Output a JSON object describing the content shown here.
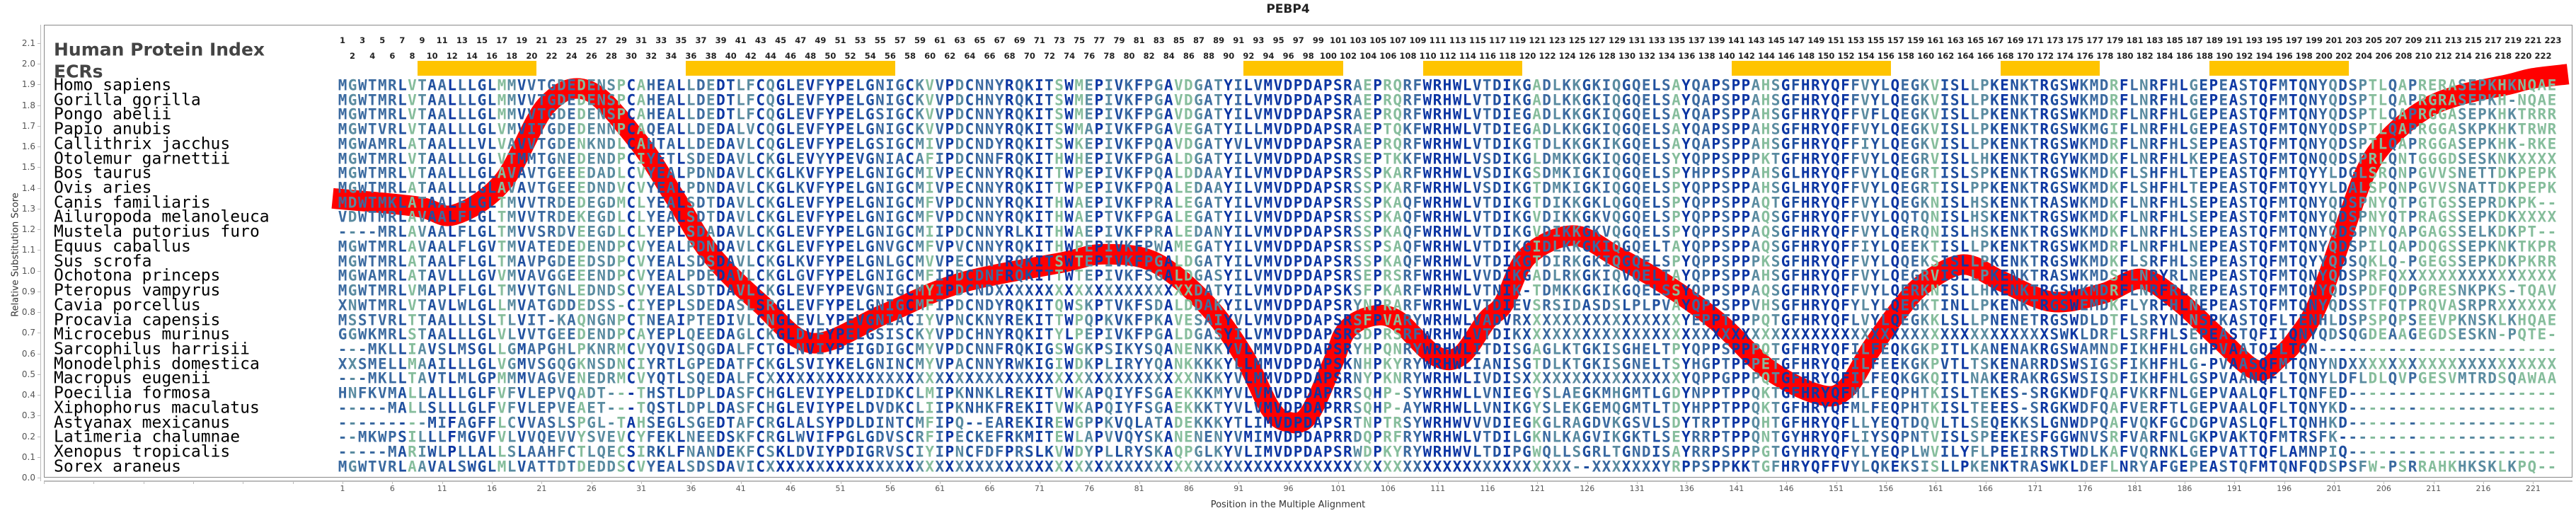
{
  "chart_data": {
    "type": "line",
    "title": "PEBP4",
    "xlabel": "Position in the Multiple Alignment",
    "ylabel": "Relative Substitution Score",
    "ylim": [
      0.0,
      2.1
    ],
    "y_tick_step": 0.1,
    "x_tick_start": 1,
    "x_tick_step": 5,
    "positions": 223,
    "grid": false,
    "curve_color": "#ff0000",
    "series": [
      {
        "name": "Relative Substitution Score",
        "x": [
          0,
          8.5,
          12.2,
          17.1,
          21.5,
          25.7,
          30.6,
          34.3,
          38,
          43,
          48.2,
          55.4,
          63,
          73.3,
          77.5,
          82.6,
          87.7,
          91.5,
          94.1,
          95.9,
          98,
          100.5,
          101.8,
          104.3,
          106.9,
          110.7,
          113.3,
          115.9,
          117.6,
          120,
          124.6,
          128.9,
          134,
          139.2,
          144.3,
          149.4,
          152,
          154.5,
          157.5,
          159.9,
          163.8,
          167.6,
          172.7,
          177.8,
          181.7,
          185.5,
          189.3,
          193.2,
          195.7,
          197.4,
          199.3,
          201.7,
          204.1,
          206.5,
          210.1,
          213.7,
          218.5,
          221,
          224.5
        ],
        "y": [
          1.35,
          1.31,
          1.27,
          1.43,
          1.8,
          1.87,
          1.63,
          1.36,
          1.08,
          0.84,
          0.65,
          0.79,
          0.94,
          1.04,
          1.08,
          1.04,
          0.84,
          0.59,
          0.34,
          0.27,
          0.3,
          0.56,
          0.71,
          0.78,
          0.76,
          0.59,
          0.59,
          0.76,
          0.84,
          1.07,
          1.17,
          1.07,
          0.93,
          0.75,
          0.52,
          0.4,
          0.43,
          0.62,
          0.82,
          0.94,
          1.03,
          0.95,
          0.85,
          0.89,
          0.96,
          0.85,
          0.68,
          0.52,
          0.59,
          0.68,
          0.83,
          1.15,
          1.47,
          1.64,
          1.78,
          1.85,
          1.9,
          1.93,
          1.95
        ]
      }
    ]
  },
  "header": {
    "index_label": "Human Protein Index",
    "ecr_label": "ECRs",
    "ecr_color": "#ffc400",
    "ecr_ranges": [
      [
        9,
        20
      ],
      [
        36,
        56
      ],
      [
        92,
        101
      ],
      [
        110,
        119
      ],
      [
        141,
        156
      ],
      [
        168,
        177
      ],
      [
        189,
        202
      ]
    ]
  },
  "alignment": {
    "colors": {
      "high": "#0b35a3",
      "mid_high": "#1f4f9f",
      "mid": "#3b6aa0",
      "mid_low": "#5a8ba0",
      "low": "#86bd9c"
    },
    "rows": [
      {
        "species": "Homo sapiens",
        "sequence": "MGWTMRLVTAALLLGLMMVVTGDEDENSPCAHEALLDEDTLFCQGLEVFYPELGNIGCKVVPDCNNYRQKITSWMEPIVKFPGAVDGATYILVMVDPDAPSRAEPRQRFWRHWLVTDIKGADLKKGKIQGQELSAYQAPSPPAHSGFHRYQFFVYLQEGKVISLLPKENKTRGSWKMDRFLNRFHLGEPEASTQFMTQNYQDSPTLQAPRERASEPKHKNQAE"
      },
      {
        "species": "Gorilla gorilla",
        "sequence": "MGWTMRLVTAALLLGLMMVVTGDEDENSPCAHEALLDEDTLFCQGLEVFYPELGNIGCKVVPDCHNYRQKITSWMEPIVKFPGAVDGATYILVMVDPDAPSRAEPRQRFWRHWLVTDIKGADLKKGKIQGQELSAYQAPSPPAHSGFHRYQFFVYLQEGKVISLLPKENKTRGSWKMDRFLNRFHLGEPEASTQFMTQNYQDSPTLQAPRGRASEPKH-NQAE"
      },
      {
        "species": "Pongo abelii",
        "sequence": "MGWTMRLVTAALLLGLMMVVTGDEDENSPCAHEALLDEDTLFCQGLEVFYPELGSIGCKVVPDCNNYRQKITSWMEPIVKFPGAVDGATYILVMVDPDAPSRAEPRQRFWRHWLVTDIEGADLKKGKIQGQELSAYQAPSPPAHSGFHRYQFFVFLQEGKVISLLPKENKTRGSWKMDRFLNRFHLGEPEASTQFMTQNYQDSPTLQAPRGGASEPKHKTRRR"
      },
      {
        "species": "Papio anubis",
        "sequence": "MGWTVRLVTAALLLGLVMVITGDEDENNPCAQEALLDEDALVCQGLEVFYPELGNIGCKVVPDCNNYRQKITSWMAPIVKFPGAVEGATYILLMVDPDAPSRAEPTQKFWRHWLVTDIEGADLKKGKIQGQELSAYQAPSPPAHSGFHRYQFFVYLQEGKVISLLPKENKTRGSWKMGIFLNRFHLGEPEASTQFMTQNYQDSPTLQAPRGGASKPKHKTRWR"
      },
      {
        "species": "Callithrix jacchus",
        "sequence": "MGWAMRLATAALLLVLVAVVTGDENKNDLCAHTALLDEDAVLCQGLEVFYPELGSIGCMIVPDCNDYRQKITSWKEPIVKFPQAVDGATYVLVMVDPDAPSRAEPRQRFWRHWLVTDIKGTDLKKGKIKGQELSAYQAPSPPAHSGFHRYQFFIYLQEGKVISLLPKENKTRGSWKMDRFLNRFHLSEPEASTQFMTQNYQDSPTLQAPRGGASEPKHK-RKE"
      },
      {
        "species": "Otolemur garnettii",
        "sequence": "MGWTMRLVTAALLLGLVTMMTGNEDENDPCIYETLSDEDAVLCKGLEVYYPEVGNIACAFIPDCNNFRQKITHWHEPIVKFPGALDGATYILVMVDPDAPSRSEPTKKFWRHWLVSDIKGLDMKKGKIQGQELSYYQPPSPPPKTGFHRYQFFVYLQEGRVISLLHKENKTRGYWKMDKFLNRFHLKEPEASTQFMTQNQQDSPRLQNTGGGDSESKNKXXXX"
      },
      {
        "species": "Bos taurus",
        "sequence": "MGWTMRLVTAALLLGLAVAVTGEEEDADLCVYEALPDNDAVLCKGLKVFYPELGNIGCMIVPECNNYRQKITTWPEPIVKFPQALDDAAYILVMVDPDAPSRSSPKARFWRHWLVSDIKGSDMKIGKIQGQELSPYHPPSPPAHSGLHRYQFFVYLQEGRTISLSPKENKTRGSWKMDKFLSHFHLTEPEASTQFMTQYYLDGLSRQNPGVVSNETTDKPEPK"
      },
      {
        "species": "Ovis aries",
        "sequence": "MGWTMRLATAALLLGLAVAVTGEEEDNDVCVYEALPDNDAVLCKGLKVFYPELGNIGCMIVPECNNYRQKITTWPEPIVKFPQALEDAAYILVMVDPDAPSRSSPKARFWRHWLVSDIKGTDMKIGKIQGQELSPYQPPSPPAHSGLHRYQFFVYLQEGRTISLPPKENKTRGSWKMDKFLSHFHLTEPEASTQFMTQYYLDALSPQNPGVVSNATTDKPEPK"
      },
      {
        "species": "Canis familiaris",
        "sequence": "MDWTMKLATAALFLGLTMVVTRDEDEGDMCLYEALSDTDAVLCKGLEVFYPELGNIGCMFVPDCNNYRQKITHWAEPIVKFPRALEGATYILVMVDPDAPSRSSPKAQFWRHWLVTDIKGTDIKKGKLQGQELSPYQPPSPPAQTGFHRYQFFVYLQEGKNISLHSKENKTRASWKMDKFLNRFHLSEPEASTQFMTQNYQDSPNYQTPGTGSSEPRDKPK--"
      },
      {
        "species": "Ailuropoda melanoleuca",
        "sequence": "VDWTMRLAVAALFLGLTMVVTRDEKEGDLCLYEALSDTDAVLCKGLEVFYPELGNIGCMFVPDCNNYRQKITHWAEPTVKFPGALEGATYILVMVDPDAPSRSSPKAQFWRHWLVTDIKGVDIKKGKVQGQELSPYQPPSPPAQSGFHRYQFFVYLQQTQNISLHSKENKTRGSWKMDKFLNRFHLSEPEASTQFMTQNYQDSPNYQTPRAGSSEPKDKXXXX"
      },
      {
        "species": "Mustela putorius furo",
        "sequence": "----MRLAVAALFLGLTMVVSRDVEEGDLCLYEPLSDADAVLCKGLEVFYPELGNIGCMIIPDCNNYRLKITHWAEPIVKFPRALEDANYILVMVDPDAPSRSSPKAQFWRHWLVTDIKGVDIKKGKVQGQELSPYQPPSPPAQSGFHRYQFFVYLQERQNISLHSKENKTRGSWKMDKFLNRFHLSEPEASTQFMTQNYQDSPNYQAPGAGSSELKDKPT--"
      },
      {
        "species": "Equus caballus",
        "sequence": "MGWTMRLAVAALFLGVTMVATEDEDENDPCVYEALPDNDAVLCKGLEVFYPELGNVGCMFVPVCNNYRQKITHWPEPIVKFPWAMEGATYILVMVDPDAPSRSSPSAQFWRHWLVTDIKGIDLKKGKIQGQELTAYQPPSPPAQSGFHRYQFFIYLQEEKTISLLPKENKTRGSWKMDRFLNRFHLNEPEASTQFMTQNYQDSPILQAPDQGSSEPKNKTKPR"
      },
      {
        "species": "Sus scrofa",
        "sequence": "MGWTMRLATAALFLGLTMAVPGDEEDSDPCVYEALSDSDAVLCKGLKVFYPELGNLGCMVVPECNNYRQKITSWTEPIVKFPGALDGATYILVMVDPDAPSRSSPKAQFWRHWLVTDIKGTDIRKGKIQGQELSPYQPPSPPPKSGFHRYQFFVYLQQEKSISLLPKENKTRGSWKMDKFLSRFHLSEPEASTQFMTQYYQDSQKLQ-PGEGSSEPKDKPKRR"
      },
      {
        "species": "Ochotona princeps",
        "sequence": "MGWAMRLATAVLLLGVVMVAVGGEEENDPCVYEALPDEDAVLCKGLGVFYPELGNIGCMFIPDCDNFRQKITTWTEPIVKFSGALDGASYILVMVDPDAPSRSEPRSRFWRHWLVVDIKGADLRKGKIQVQELTAYQPPSPPAHSGFHRYQFFVYLQEGRVISLLPKENKTRASWKMDSFLNRYRLNEPEASTQFMTQNYQDSPRFQXXXXXXXXXXXXXXXX"
      },
      {
        "species": "Pteropus vampyrus",
        "sequence": "MGWTMRLVMAPLFLGLTMVVTGNLEDNDSCVYEALSDTDAVLCKGLEVFYPEVGNIGCMYIPDCNDXXXXXXXXXXXXXXXXXXXXDATYILVMVDPDAPSKSFPKARFWRHWLVTNIK-TDMKKGKIKGQELSSYQPPSPPAQSGFHRYQFFVYLQERKNISLLHKENKTRGSWKMDRFLNRFRLREPEASTQFMTQNYQDSPDFQDPGRESNKPKS-TQAV"
      },
      {
        "species": "Cavia porcellus",
        "sequence": "XNWTMRLVTAVLWLGLLMVATGDDEDSS-CIYEPLSDEDASLSRGLEVFYPELGNIGCMFIPDCNDYRQKITQWSKPTVKFSDALDDAKYILVMVDPDAPSRYNPRARFWRHWLVTDIEVSRSIDASDSLPLPVAYQPPSPPVHSGFHRYQFYLYLQEGKTINLLPKENKTRGSWEMDKFLYRFHLNEPEASTQFMTQNYQDSSTFQTPRQVASRPRXXXXXX"
      },
      {
        "species": "Procavia capensis",
        "sequence": "MSSTVRLTTAALLLSLTLVIT-KAQNGNPCTNEAIPTEDIVLCNGLEVLYPEVGNIACIYVPNCKNYREKITTWPQPKVKFPKAVESAIYVLVMVDPDAPSRSFPVARYWRHWLVADVRXXXXXXXXXXXXXXXXYEPPTPPPQTGFHRYQFLVYLQEGKKLSLLPNENETRGSWDLDTFLSRYNLNSPKASTQFLTENHLDSPSPQPSEEVPKNSKLKHQAE"
      },
      {
        "species": "Microcebus murinus",
        "sequence": "GGWKMRLSTAALLLGLVLVVTGEEDENDPCAYEPLQEEDAGLCKGLDVFYPELGSISCKYVPDCHNYRQKITYLPEPIVKFPGALDGASYILVMVDPDAPSRSDPRSRFWRHWLVTDIKXXXXXXXXXXXXXXXXXXXXXXXXXXXXXXXXXXXXXXXXXXXXXXXXXXXXXSWKLDRFLSRFHLSEPEASTQFITQNYQDSQGDEAAGEGDSESKN-PQTE"
      },
      {
        "species": "Sarcophilus harrisii",
        "sequence": "---MKLLIAVSLMSGLLGMAPGHLPKNRMCVYQVISQGDALFCTGLNVIYPEIGDIGCMYVPDCNNFRQKIGSWGKPSIKYSQANENKKYVLMMVDPDAPSRYHPQNRYWRHWLITDISGAGLKTGKISGHELTPYQPPSPPPQTGFHRYQFILFEQKGKPITLKANENAKRGSWAMNDFIKHFHLGHPVAATQFLTQN------------------------"
      },
      {
        "species": "Monodelphis domestica",
        "sequence": "XXSMELLMAAILLLGLVGMVSGQGKNSDNCIYRTLGPEDATFCKGLSVIYKELGNINCMYVPACNNYRWKIGIWDKPLIRYYQANKKKKYLLMMVDPDAPSKNHPKYRYWRHWLIANISGTDLKTGKISGNELTSYHGPTPPPETGFHRYQFILFEEKGKPVTLTSKENARRDSWSIGSFIKHFHLG-PVAASQFMTQNYNDXXXXXXXXXXXXXXXXXXXXX"
      },
      {
        "species": "Macropus eugenii",
        "sequence": "---MKLLTAVTLMLGPMMMVAGVENEDRMCVYQTLSQEDALFCXXXXXXXXXXXXXXXXXXXXXXXXXXXXXXXXXXXXXXXXXXXNKKYVLMMVDPDAPSRNYPKNRYWRHWLIVDISXXXXXXXXXXXXXXXXYQPPGPPPQTGFHRYQFILFEQKGKQITLNAKERAKRGSWSISDFIKHFHLGSPVAANQFLTQNYLDFLDLQVPGESVMTRDSQAWAA"
      },
      {
        "species": "Poecilia formosa",
        "sequence": "HNFKVMALLALLLGLFVFVLEPVQADT---THSTLDPLDASFCHGLEVIYPELDIDKCLMIPKNNKLREKITVWKAPQIYFSGAEKKKMYVLVMVDPDAPRRSQHP-SYWRHWLLVNIEGYSLAEGKMHGMTLGDYNPPTPPQKTGFHRYQFMLFEQPHTKISLTEKES-SRGKWDFQAFVKRFNLGEPVAALQFLTQNFED---------------------"
      },
      {
        "species": "Xiphophorus maculatus",
        "sequence": "-----MALLSLLLGLFVFVLEPVEAET---TQSTLDPLDASFCHGLEVIYPELDVDKCLIIPKNHKFREKITVWKAPQIYFSGAEKKKTYVLVMVDPDAPRRSQHP-AYWRHWLLVNIKGYSLEKGEMQGMTLTDYHPPTPPQKTGFHRYQFMLFEQPHTKISLTEEES-SRGKWDFQAFVERFTLGEPVAALQFLTQNYKD---------------------"
      },
      {
        "species": "Astyanax mexicanus",
        "sequence": "---------MIFAGFFLCVVASLSPGL-TAHSEGLSGEDTAFCRGLALSYPDLDINTCMFIPQ--EAREKIREWGPPKVQLATADEKKKYTLIMVDPDAPSRTNPTRSYWRHWVVVDIEGKGLRAGDVKGSVLSDYTRPTPPQHTGFHRYQFLLYEQTDQVLTLSEQEKKSLGNWDPQAFVQKFGCDGPVASLQFLTQNHKD---------------------"
      },
      {
        "species": "Latimeria chalumnae",
        "sequence": "--MKWPSILLLFMGVFVLVVQEVVYSVEVCYFEKLNEEDSKFCRGLWVIFPGLGDVSCRFIPECKEFRKMITEWLAPVVQYSKANENENYVMIMVDPDAPRRDQPRFRYWRHWLVTDILGKNLKAGVIKGKTLSEYRRPTPPQNTGYHRYQFLIYSQPNTVISLSPEEKESFGGWNVSRFVARFNLGKPVAKTQFMTRSFK----------------------"
      },
      {
        "species": "Xenopus tropicalis",
        "sequence": "-----MARIWLPLLALLSLAAHFCTLQECSIRKLFNANDEKFCSKLDVIYPDIGRVSCIYIPNCFDFPRSLKVWDYPLLRYSKAQPGLKYVLIMVDPDAPSRWDPKYRYWRHWVLTDIPGWQLLSGRLTGNDISAYRRPSPPPGTGYHRYQFYLYEQPLWVILYFLPEEIRRSTWDLKAFVQRNKLGEPVATTQFLAMNPIQ---------------------"
      },
      {
        "species": "Sorex araneus",
        "sequence": "MGWTVRLAAVALSWGLMLVATTDTDEDDSCVYEALSDSDAVICXXXXXXXXXXXXXXXXXXXXXXXXXXXXXXXXXXXXXXXXXXXXXXXXXXXXXXXXXXXXXXXXXXXXXXXXXXXXXXXXX--XXXXXXXYRPPSPPKKTGFHRYQFFVYLQKEKSISLLPKENKTRASWKLDEFLNRYAFGEPEASTQFMTQNFQDSPSFW-PSRRAHKHKSKLKPQ"
      }
    ]
  }
}
